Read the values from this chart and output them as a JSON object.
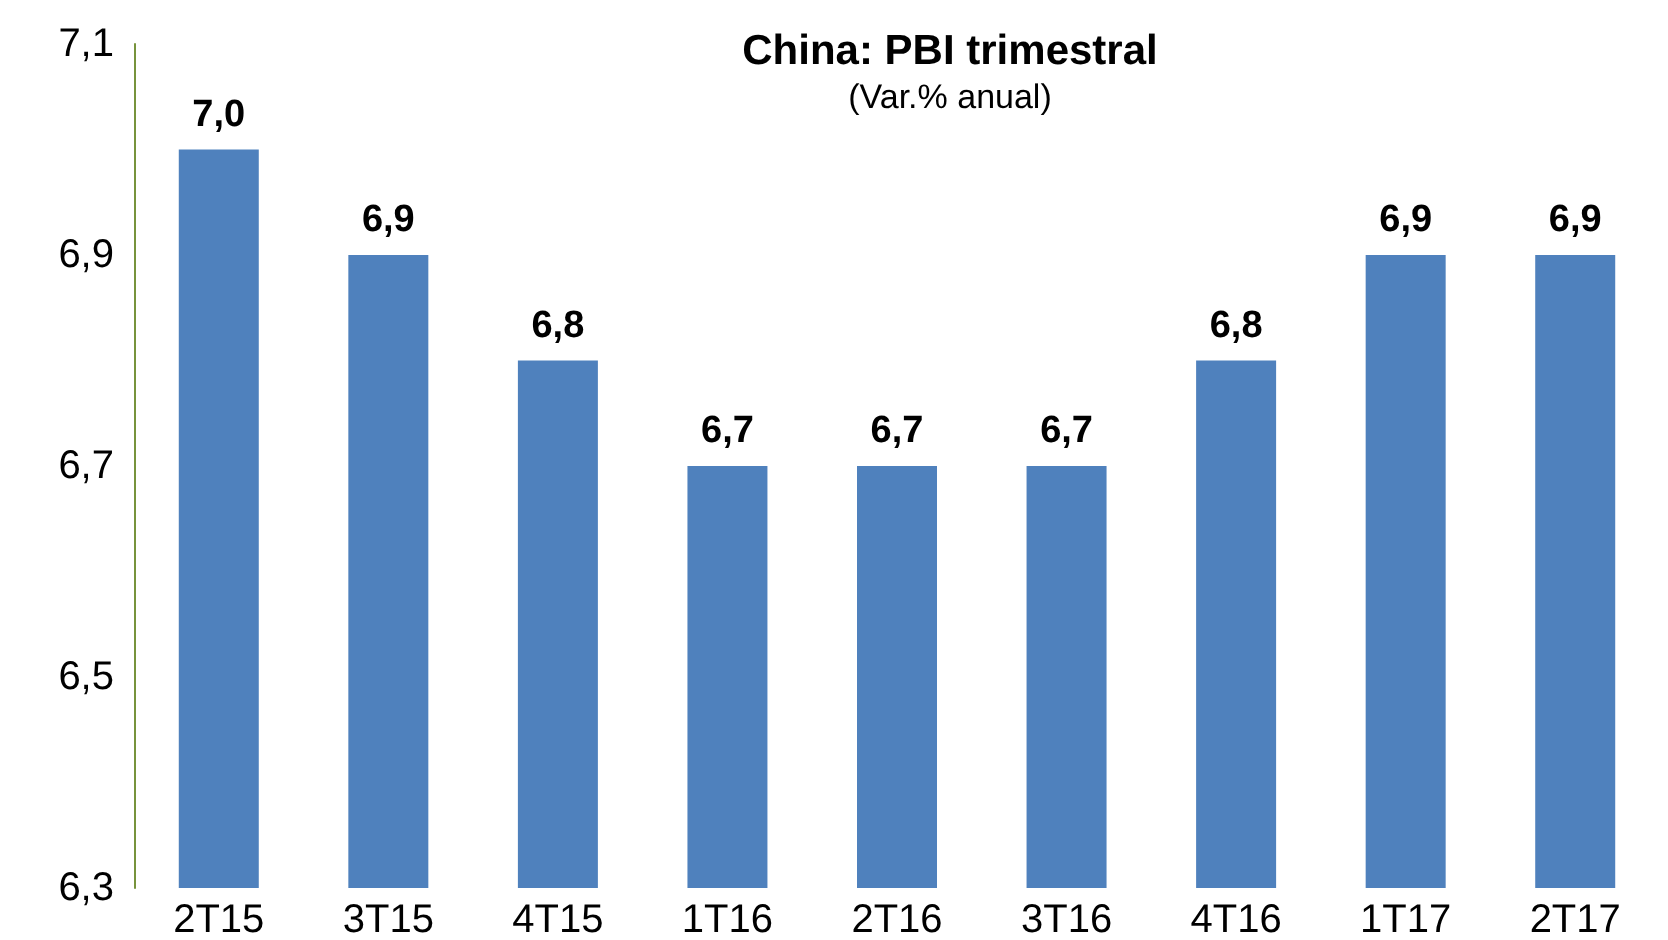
{
  "chart_data": {
    "type": "bar",
    "title": "China: PBI trimestral",
    "subtitle": "(Var.% anual)",
    "categories": [
      "2T15",
      "3T15",
      "4T15",
      "1T16",
      "2T16",
      "3T16",
      "4T16",
      "1T17",
      "2T17"
    ],
    "values": [
      7.0,
      6.9,
      6.8,
      6.7,
      6.7,
      6.7,
      6.8,
      6.9,
      6.9
    ],
    "value_labels": [
      "7,0",
      "6,9",
      "6,8",
      "6,7",
      "6,7",
      "6,7",
      "6,8",
      "6,9",
      "6,9"
    ],
    "color": "#4f81bd",
    "ylim": [
      6.3,
      7.1
    ],
    "yticks": [
      {
        "value": 6.3,
        "label": "6,3"
      },
      {
        "value": 6.5,
        "label": "6,5"
      },
      {
        "value": 6.7,
        "label": "6,7"
      },
      {
        "value": 6.9,
        "label": "6,9"
      },
      {
        "value": 7.1,
        "label": "7,1"
      }
    ],
    "grid": false
  }
}
